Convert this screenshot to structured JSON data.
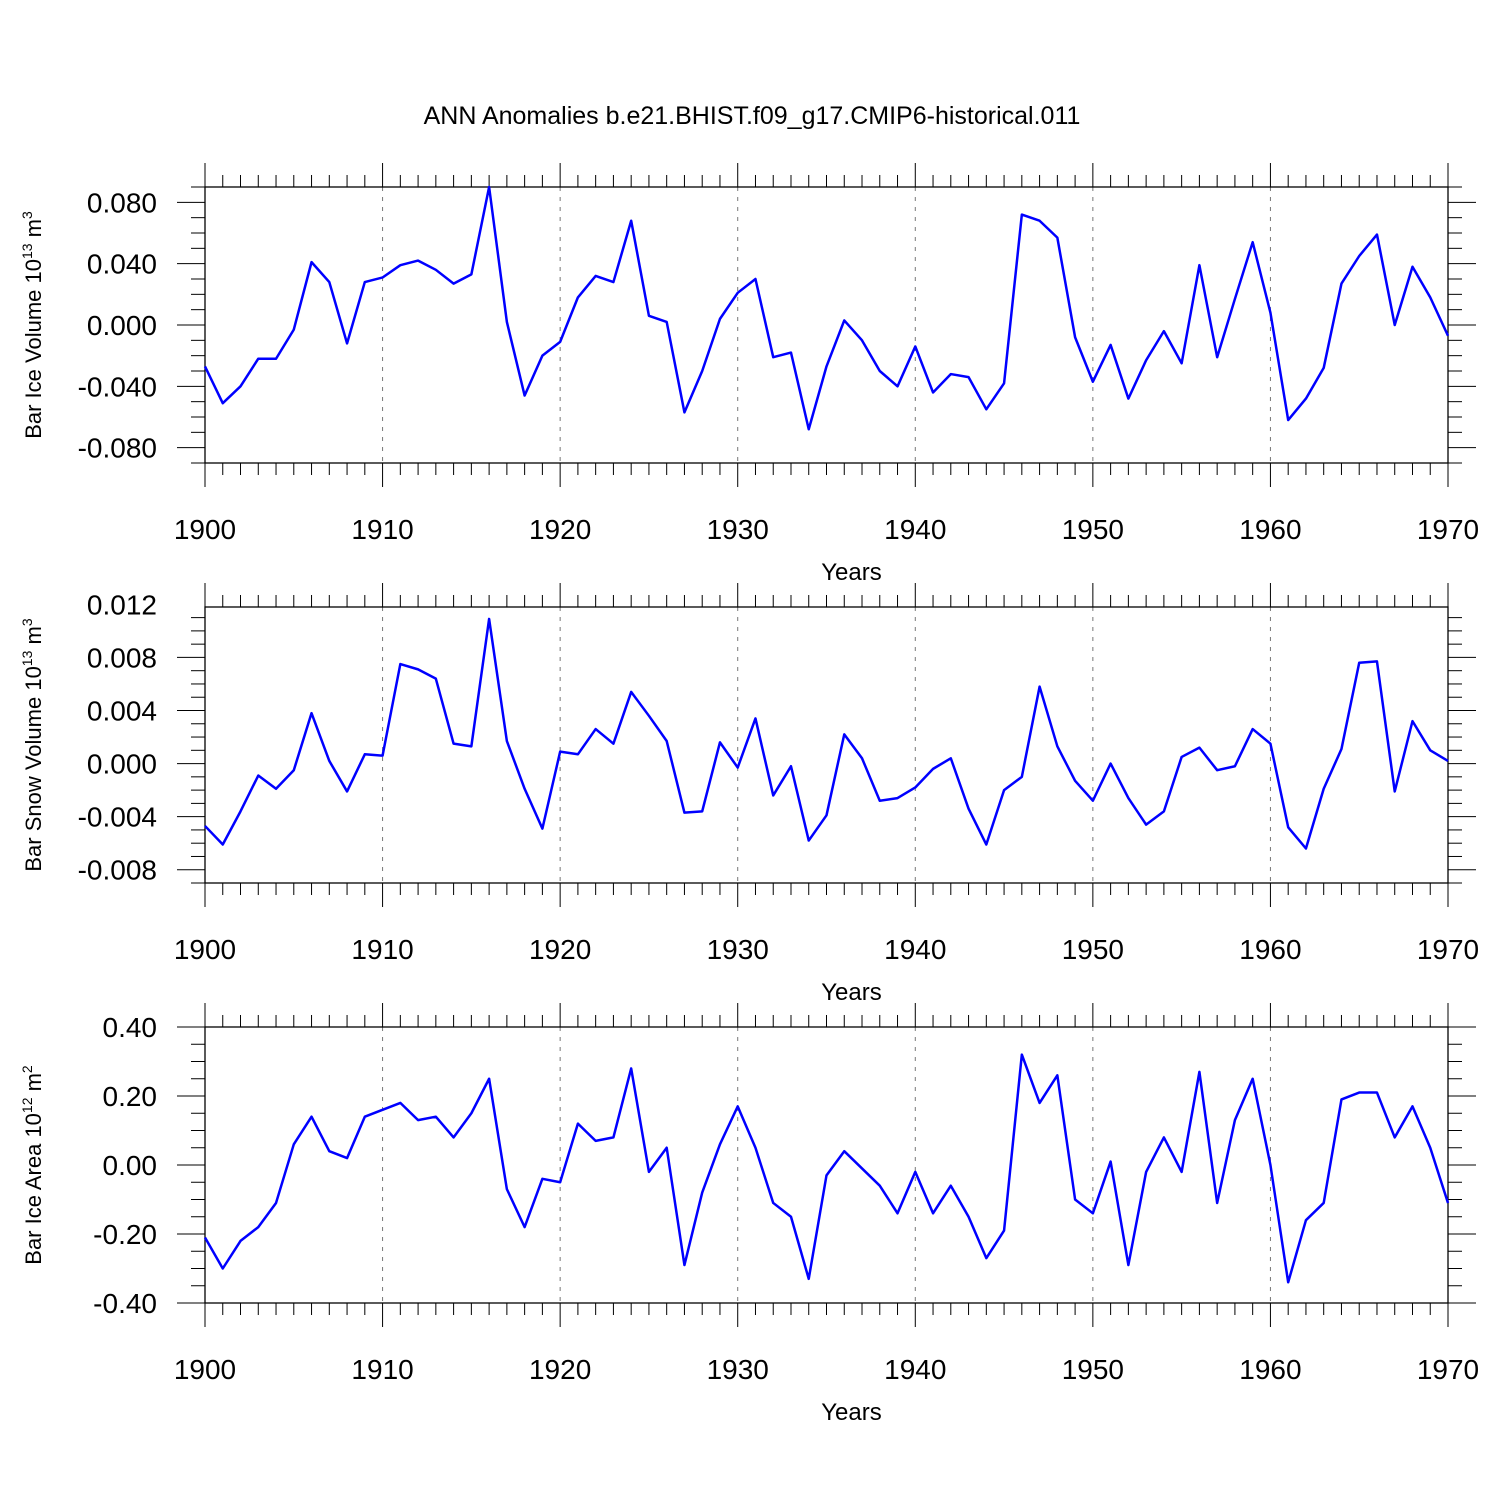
{
  "title": "ANN Anomalies b.e21.BHIST.f09_g17.CMIP6-historical.011",
  "line_color": "#0000ff",
  "chart_data": [
    {
      "type": "line",
      "ylabel": {
        "text": "Bar Ice Volume 10",
        "sup": "13",
        "unit": " m",
        "unit_sup": "3"
      },
      "xlabel": "Years",
      "xlim": [
        1900,
        1970
      ],
      "ylim": [
        -0.09,
        0.09
      ],
      "xticks": [
        "1900",
        "1910",
        "1920",
        "1930",
        "1940",
        "1950",
        "1960",
        "1970"
      ],
      "yticks": [
        "0.080",
        "0.040",
        "0.000",
        "-0.040",
        "-0.080"
      ],
      "ytick_values": [
        0.08,
        0.04,
        0.0,
        -0.04,
        -0.08
      ],
      "grid": "dashed vertical at decades",
      "x_start": 1900,
      "values": [
        -0.027,
        -0.051,
        -0.04,
        -0.022,
        -0.022,
        -0.003,
        0.041,
        0.028,
        -0.012,
        0.028,
        0.031,
        0.039,
        0.042,
        0.036,
        0.027,
        0.033,
        0.09,
        0.002,
        -0.046,
        -0.02,
        -0.011,
        0.018,
        0.032,
        0.028,
        0.068,
        0.006,
        0.002,
        -0.057,
        -0.03,
        0.004,
        0.021,
        0.03,
        -0.021,
        -0.018,
        -0.068,
        -0.027,
        0.003,
        -0.01,
        -0.03,
        -0.04,
        -0.014,
        -0.044,
        -0.032,
        -0.034,
        -0.055,
        -0.038,
        0.072,
        0.068,
        0.057,
        -0.008,
        -0.037,
        -0.013,
        -0.048,
        -0.023,
        -0.004,
        -0.025,
        0.039,
        -0.021,
        0.017,
        0.054,
        0.008,
        -0.062,
        -0.048,
        -0.028,
        0.027,
        0.045,
        0.059,
        0.0,
        0.038,
        0.018,
        -0.007
      ]
    },
    {
      "type": "line",
      "ylabel": {
        "text": "Bar Snow Volume 10",
        "sup": "13",
        "unit": " m",
        "unit_sup": "3"
      },
      "xlabel": "Years",
      "xlim": [
        1900,
        1970
      ],
      "ylim": [
        -0.009,
        0.0118
      ],
      "xticks": [
        "1900",
        "1910",
        "1920",
        "1930",
        "1940",
        "1950",
        "1960",
        "1970"
      ],
      "yticks": [
        "0.012",
        "0.008",
        "0.004",
        "0.000",
        "-0.004",
        "-0.008"
      ],
      "ytick_values": [
        0.012,
        0.008,
        0.004,
        0.0,
        -0.004,
        -0.008
      ],
      "grid": "dashed vertical at decades",
      "x_start": 1900,
      "values": [
        -0.0047,
        -0.0061,
        -0.0036,
        -0.0009,
        -0.0019,
        -0.0005,
        0.0038,
        0.0002,
        -0.0021,
        0.0007,
        0.0006,
        0.0075,
        0.0071,
        0.0064,
        0.0015,
        0.0013,
        0.0109,
        0.0017,
        -0.0019,
        -0.0049,
        0.0009,
        0.0007,
        0.0026,
        0.0015,
        0.0054,
        0.0036,
        0.0017,
        -0.0037,
        -0.0036,
        0.0016,
        -0.0003,
        0.0034,
        -0.0024,
        -0.0002,
        -0.0058,
        -0.0039,
        0.0022,
        0.0004,
        -0.0028,
        -0.0026,
        -0.0018,
        -0.0004,
        0.0004,
        -0.0034,
        -0.0061,
        -0.002,
        -0.001,
        0.0058,
        0.0013,
        -0.0013,
        -0.0028,
        0.0,
        -0.0026,
        -0.0046,
        -0.0036,
        0.0005,
        0.0012,
        -0.0005,
        -0.0002,
        0.0026,
        0.0015,
        -0.0048,
        -0.0064,
        -0.0019,
        0.0011,
        0.0076,
        0.0077,
        -0.0021,
        0.0032,
        0.001,
        0.0002
      ]
    },
    {
      "type": "line",
      "ylabel": {
        "text": "Bar Ice Area 10",
        "sup": "12",
        "unit": " m",
        "unit_sup": "2"
      },
      "xlabel": "Years",
      "xlim": [
        1900,
        1970
      ],
      "ylim": [
        -0.4,
        0.4
      ],
      "xticks": [
        "1900",
        "1910",
        "1920",
        "1930",
        "1940",
        "1950",
        "1960",
        "1970"
      ],
      "yticks": [
        "0.40",
        "0.20",
        "0.00",
        "-0.20",
        "-0.40"
      ],
      "ytick_values": [
        0.4,
        0.2,
        0.0,
        -0.2,
        -0.4
      ],
      "grid": "dashed vertical at decades",
      "x_start": 1900,
      "values": [
        -0.21,
        -0.3,
        -0.22,
        -0.18,
        -0.11,
        0.06,
        0.14,
        0.04,
        0.02,
        0.14,
        0.16,
        0.18,
        0.13,
        0.14,
        0.08,
        0.15,
        0.25,
        -0.07,
        -0.18,
        -0.04,
        -0.05,
        0.12,
        0.07,
        0.08,
        0.28,
        -0.02,
        0.05,
        -0.29,
        -0.08,
        0.06,
        0.17,
        0.05,
        -0.11,
        -0.15,
        -0.33,
        -0.03,
        0.04,
        -0.01,
        -0.06,
        -0.14,
        -0.02,
        -0.14,
        -0.06,
        -0.15,
        -0.27,
        -0.19,
        0.32,
        0.18,
        0.26,
        -0.1,
        -0.14,
        0.01,
        -0.29,
        -0.02,
        0.08,
        -0.02,
        0.27,
        -0.11,
        0.13,
        0.25,
        0.0,
        -0.34,
        -0.16,
        -0.11,
        0.19,
        0.21,
        0.21,
        0.08,
        0.17,
        0.05,
        -0.11
      ]
    }
  ]
}
